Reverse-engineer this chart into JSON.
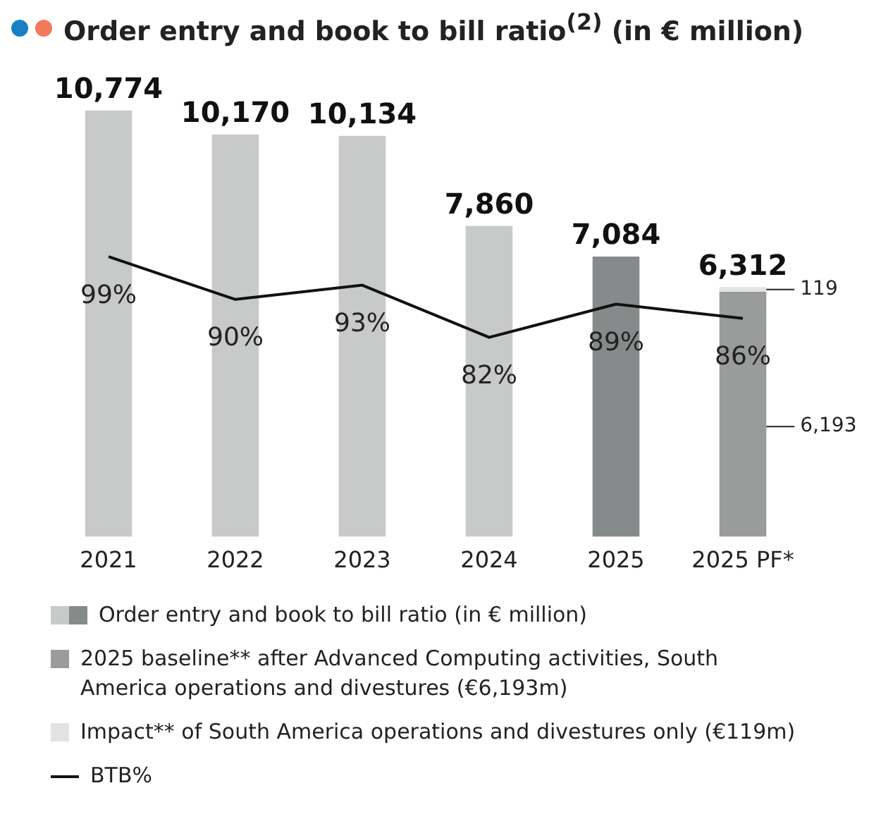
{
  "chart_data": {
    "type": "bar",
    "title": "Order entry and book to bill ratio$^{(2)}$ (in € million)",
    "categories": [
      "2021",
      "2022",
      "2023",
      "2024",
      "2025",
      "2025 PF*"
    ],
    "stacked": true,
    "grid": false,
    "tick_labels": "x",
    "legend": "bottom",
    "series": [
      {
        "name": "Order entry and book to bill ratio (in € million)",
        "values": [
          10774,
          10170,
          10134,
          7860,
          7084,
          null
        ],
        "colors": [
          "#c8c9c9",
          "#c8c9c9",
          "#c8c9c9",
          "#c8c9c9",
          "#878a8a",
          null
        ]
      },
      {
        "name": "2025 baseline** after Advanced Computing activities, South America operations and divestures (€6,193m)",
        "values": [
          null,
          null,
          null,
          null,
          null,
          6193
        ],
        "color": "#9a9c9c",
        "value_labels": [
          null,
          null,
          null,
          null,
          null,
          "6,193"
        ]
      },
      {
        "name": "Impact** of South America operations and divestures only (€119m)",
        "values": [
          null,
          null,
          null,
          null,
          null,
          119
        ],
        "color": "#e3e3e3",
        "value_labels": [
          null,
          null,
          null,
          null,
          null,
          "119"
        ]
      },
      {
        "name": "BTB%",
        "type": "line",
        "axis": "y2",
        "color": "#111111",
        "values": [
          99,
          90,
          93,
          82,
          89,
          86
        ],
        "value_labels": [
          "99%",
          "90%",
          "93%",
          "82%",
          "89%",
          "86%"
        ]
      }
    ],
    "totals": [
      "10,774",
      "10,170",
      "10,134",
      "7,860",
      "7,084",
      "6,312"
    ]
  }
}
